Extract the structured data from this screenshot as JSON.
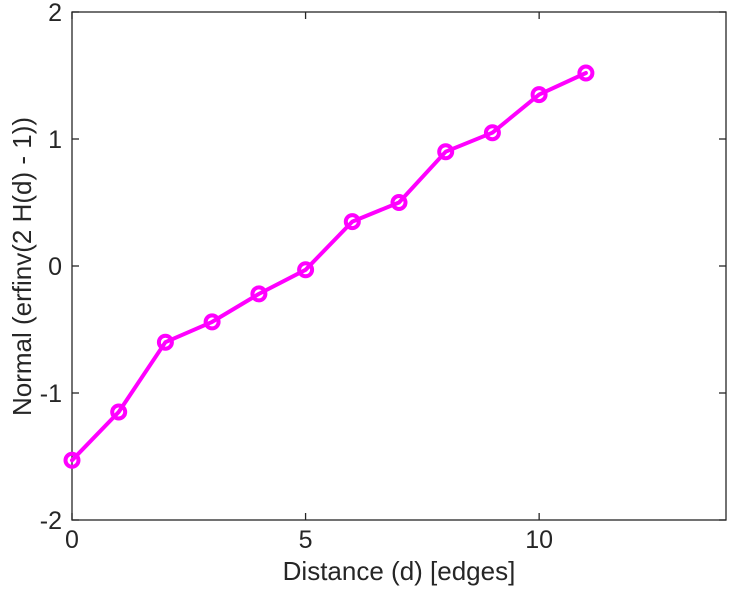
{
  "chart_data": {
    "type": "line",
    "title": "",
    "xlabel": "Distance (d) [edges]",
    "ylabel": "Normal (erfinv(2 H(d) - 1))",
    "x": [
      0,
      1,
      2,
      3,
      4,
      5,
      6,
      7,
      8,
      9,
      10,
      11
    ],
    "y": [
      -1.53,
      -1.15,
      -0.6,
      -0.44,
      -0.22,
      -0.03,
      0.35,
      0.5,
      0.9,
      1.05,
      1.35,
      1.52
    ],
    "xlim": [
      0,
      14
    ],
    "ylim": [
      -2,
      2
    ],
    "xticks": [
      0,
      5,
      10
    ],
    "yticks": [
      -2,
      -1,
      0,
      1,
      2
    ],
    "grid": false,
    "legend": "none",
    "line_color": "#FF00FF",
    "axis_color": "#262626",
    "background_color": "#FFFFFF",
    "marker": "circle-hollow",
    "line_width": 4,
    "marker_radius": 6.5
  }
}
